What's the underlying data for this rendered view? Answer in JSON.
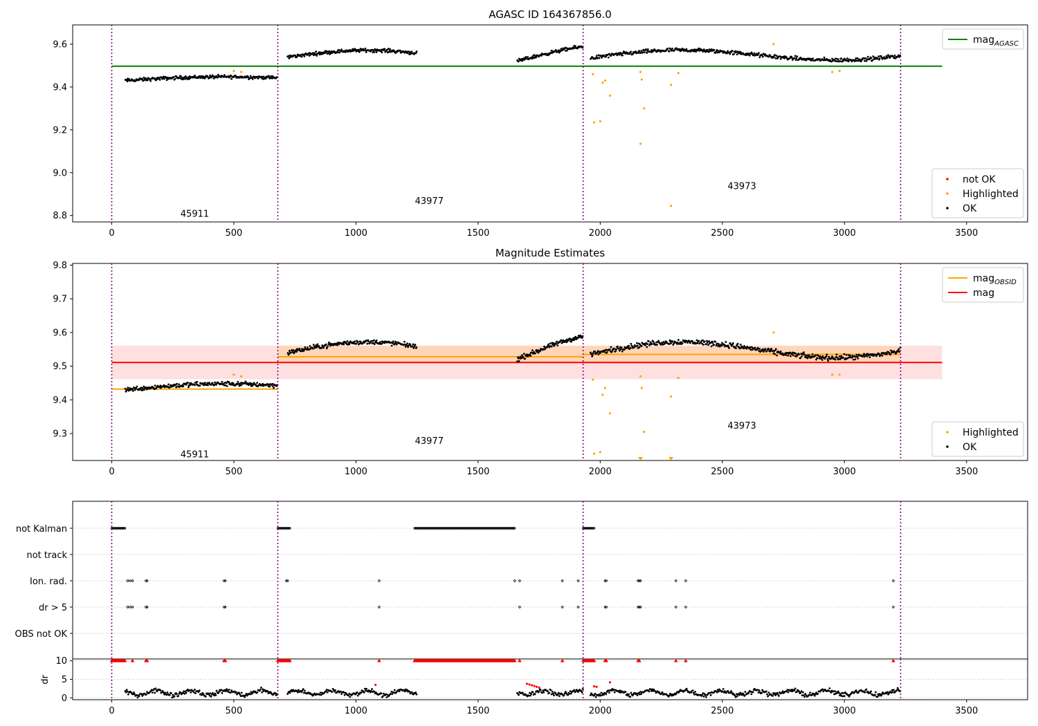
{
  "chart_data": [
    {
      "type": "scatter",
      "title": "AGASC ID 164367856.0",
      "xlim": [
        -160,
        3750
      ],
      "ylim": [
        8.77,
        9.69
      ],
      "xticks": [
        0,
        500,
        1000,
        1500,
        2000,
        2500,
        3000,
        3500
      ],
      "yticks": [
        8.8,
        9.0,
        9.2,
        9.4,
        9.6
      ],
      "xtick_labels": [
        "0",
        "500",
        "1000",
        "1500",
        "2000",
        "2500",
        "3000",
        "3500"
      ],
      "ytick_labels": [
        "8.8",
        "9.0",
        "9.2",
        "9.4",
        "9.6"
      ],
      "obs_boundaries": [
        0,
        680,
        1930,
        3230
      ],
      "obs_labels": [
        {
          "x": 340,
          "y": 8.81,
          "text": "45911"
        },
        {
          "x": 1300,
          "y": 8.87,
          "text": "43977"
        },
        {
          "x": 2580,
          "y": 8.94,
          "text": "43973"
        }
      ],
      "hlines": [
        {
          "name": "mag_AGASC",
          "y": 9.497,
          "x0": 0,
          "x1": 3400,
          "color": "#008000"
        }
      ],
      "series": [
        {
          "name": "OK",
          "color": "#000000",
          "segments": [
            {
              "x0": 55,
              "x1": 680,
              "base": 9.43,
              "amp": 0.012,
              "slope": 0.015,
              "noise": 0.014,
              "n": 240
            },
            {
              "x0": 720,
              "x1": 1250,
              "base": 9.54,
              "amp": 0.035,
              "slope": -0.01,
              "noise": 0.014,
              "n": 210
            },
            {
              "x0": 1660,
              "x1": 1930,
              "base": 9.52,
              "amp": 0.05,
              "slope": 0.08,
              "noise": 0.014,
              "n": 110
            },
            {
              "x0": 1960,
              "x1": 3230,
              "base": 9.535,
              "amp": 0.03,
              "slope": 0.02,
              "noise": 0.016,
              "n": 470
            }
          ]
        },
        {
          "name": "Highlighted",
          "color": "#ffa500",
          "points": [
            [
              500,
              9.475
            ],
            [
              530,
              9.47
            ],
            [
              1970,
              9.46
            ],
            [
              2010,
              9.42
            ],
            [
              2020,
              9.43
            ],
            [
              2040,
              9.36
            ],
            [
              1975,
              9.235
            ],
            [
              2000,
              9.24
            ],
            [
              2165,
              9.47
            ],
            [
              2170,
              9.435
            ],
            [
              2180,
              9.3
            ],
            [
              2165,
              9.135
            ],
            [
              2290,
              9.41
            ],
            [
              2320,
              9.465
            ],
            [
              2290,
              8.845
            ],
            [
              2710,
              9.6
            ],
            [
              2950,
              9.47
            ],
            [
              2980,
              9.475
            ]
          ]
        },
        {
          "name": "not OK",
          "color": "#ff0000",
          "points": []
        }
      ],
      "legends": [
        {
          "loc": "top-right",
          "items": [
            {
              "label": "mag",
              "sub": "AGASC",
              "kind": "line",
              "color": "#008000"
            }
          ]
        },
        {
          "loc": "lower-right",
          "items": [
            {
              "label": "not OK",
              "kind": "dot",
              "color": "#ff0000"
            },
            {
              "label": "Highlighted",
              "kind": "dot",
              "color": "#ffa500"
            },
            {
              "label": "OK",
              "kind": "dot",
              "color": "#000000"
            }
          ]
        }
      ]
    },
    {
      "type": "scatter",
      "title": "Magnitude Estimates",
      "xlim": [
        -160,
        3750
      ],
      "ylim": [
        9.22,
        9.805
      ],
      "xticks": [
        0,
        500,
        1000,
        1500,
        2000,
        2500,
        3000,
        3500
      ],
      "yticks": [
        9.3,
        9.4,
        9.5,
        9.6,
        9.7,
        9.8
      ],
      "xtick_labels": [
        "0",
        "500",
        "1000",
        "1500",
        "2000",
        "2500",
        "3000",
        "3500"
      ],
      "ytick_labels": [
        "9.3",
        "9.4",
        "9.5",
        "9.6",
        "9.7",
        "9.8"
      ],
      "obs_boundaries": [
        0,
        680,
        1930,
        3230
      ],
      "obs_labels": [
        {
          "x": 340,
          "y": 9.24,
          "text": "45911"
        },
        {
          "x": 1300,
          "y": 9.28,
          "text": "43977"
        },
        {
          "x": 2580,
          "y": 9.325,
          "text": "43973"
        }
      ],
      "bands": [
        {
          "y0": 9.461,
          "y1": 9.561,
          "x0": 0,
          "x1": 3400,
          "color": "#ff0000",
          "opacity": 0.12
        },
        {
          "y0": 9.51,
          "y1": 9.56,
          "x0": 680,
          "x1": 3230,
          "color": "#ffa500",
          "opacity": 0.18
        }
      ],
      "hlines": [
        {
          "name": "mag",
          "y": 9.511,
          "x0": 0,
          "x1": 3400,
          "color": "#ff0000"
        },
        {
          "name": "mag_OBSID",
          "y": 9.432,
          "x0": 0,
          "x1": 680,
          "color": "#ffa500"
        },
        {
          "name": "mag_OBSID",
          "y": 9.528,
          "x0": 680,
          "x1": 1930,
          "color": "#ffa500"
        },
        {
          "name": "mag_OBSID",
          "y": 9.535,
          "x0": 1930,
          "x1": 3230,
          "color": "#ffa500"
        }
      ],
      "series": [
        {
          "name": "OK",
          "color": "#000000",
          "segments": [
            {
              "x0": 55,
              "x1": 680,
              "base": 9.43,
              "amp": 0.012,
              "slope": 0.015,
              "noise": 0.012,
              "n": 240
            },
            {
              "x0": 720,
              "x1": 1250,
              "base": 9.54,
              "amp": 0.035,
              "slope": -0.01,
              "noise": 0.012,
              "n": 210
            },
            {
              "x0": 1660,
              "x1": 1930,
              "base": 9.52,
              "amp": 0.05,
              "slope": 0.08,
              "noise": 0.012,
              "n": 110
            },
            {
              "x0": 1960,
              "x1": 3230,
              "base": 9.535,
              "amp": 0.03,
              "slope": 0.02,
              "noise": 0.014,
              "n": 470
            }
          ]
        },
        {
          "name": "Highlighted",
          "color": "#ffa500",
          "points": [
            [
              500,
              9.475
            ],
            [
              530,
              9.47
            ],
            [
              1970,
              9.46
            ],
            [
              2010,
              9.415
            ],
            [
              2020,
              9.435
            ],
            [
              2040,
              9.36
            ],
            [
              1975,
              9.24
            ],
            [
              2000,
              9.245
            ],
            [
              2165,
              9.47
            ],
            [
              2170,
              9.435
            ],
            [
              2180,
              9.305
            ],
            [
              2290,
              9.41
            ],
            [
              2320,
              9.465
            ],
            [
              2710,
              9.6
            ],
            [
              2950,
              9.475
            ],
            [
              2980,
              9.475
            ]
          ]
        },
        {
          "name": "below-range",
          "color": "#ffa500",
          "marker": "triangle-down",
          "points": [
            [
              2165,
              9.222
            ],
            [
              2290,
              9.222
            ]
          ]
        }
      ],
      "legends": [
        {
          "loc": "top-right",
          "items": [
            {
              "label": "mag",
              "sub": "OBSID",
              "kind": "line",
              "color": "#ffa500"
            },
            {
              "label": "mag",
              "kind": "line",
              "color": "#ff0000"
            }
          ]
        },
        {
          "loc": "lower-right",
          "items": [
            {
              "label": "Highlighted",
              "kind": "dot",
              "color": "#ffa500"
            },
            {
              "label": "OK",
              "kind": "dot",
              "color": "#000000"
            }
          ]
        }
      ]
    },
    {
      "type": "scatter",
      "title": "",
      "xlim": [
        -160,
        3750
      ],
      "categories": [
        "not Kalman",
        "not track",
        "Ion. rad.",
        "dr > 5",
        "OBS not OK"
      ],
      "obs_boundaries": [
        0,
        680,
        1930,
        3230
      ],
      "flags": [
        {
          "category": "not Kalman",
          "ranges": [
            [
              0,
              55
            ],
            [
              680,
              730
            ],
            [
              1240,
              1650
            ],
            [
              1930,
              1975
            ]
          ]
        },
        {
          "category": "not track",
          "ranges": []
        },
        {
          "category": "Ion. rad.",
          "x": [
            65,
            75,
            85,
            140,
            145,
            460,
            465,
            715,
            720,
            1095,
            1650,
            1670,
            1845,
            1910,
            2020,
            2025,
            2155,
            2160,
            2165,
            2310,
            2350,
            3200
          ]
        },
        {
          "category": "dr > 5",
          "x": [
            65,
            75,
            85,
            140,
            145,
            460,
            465,
            1095,
            1670,
            1845,
            1910,
            2020,
            2025,
            2155,
            2160,
            2165,
            2310,
            2350,
            3200
          ]
        },
        {
          "category": "OBS not OK",
          "x": []
        }
      ]
    },
    {
      "type": "scatter",
      "title": "",
      "ylabel": "dr",
      "xlim": [
        -160,
        3750
      ],
      "ylim": [
        -0.5,
        10.5
      ],
      "xticks": [
        0,
        500,
        1000,
        1500,
        2000,
        2500,
        3000,
        3500
      ],
      "yticks": [
        0,
        5,
        10
      ],
      "xtick_labels": [
        "0",
        "500",
        "1000",
        "1500",
        "2000",
        "2500",
        "3000",
        "3500"
      ],
      "ytick_labels": [
        "0",
        "5",
        "10"
      ],
      "obs_boundaries": [
        0,
        680,
        1930,
        3230
      ],
      "clipped_ranges": [
        [
          0,
          55
        ],
        [
          680,
          730
        ],
        [
          1240,
          1650
        ],
        [
          1930,
          1975
        ]
      ],
      "clipped_points": [
        85,
        140,
        145,
        460,
        465,
        1095,
        1670,
        1845,
        2020,
        2025,
        2155,
        2160,
        2310,
        2350,
        3200
      ],
      "ok_ranges": [
        [
          55,
          680
        ],
        [
          720,
          1250
        ],
        [
          1660,
          1930
        ],
        [
          1960,
          3230
        ]
      ],
      "red_points": [
        [
          1700,
          3.8
        ],
        [
          1710,
          3.6
        ],
        [
          1720,
          3.4
        ],
        [
          1730,
          3.2
        ],
        [
          1740,
          3.0
        ],
        [
          1750,
          2.8
        ],
        [
          1975,
          3.1
        ],
        [
          1985,
          3.0
        ],
        [
          2040,
          4.2
        ],
        [
          1080,
          3.5
        ]
      ]
    }
  ]
}
